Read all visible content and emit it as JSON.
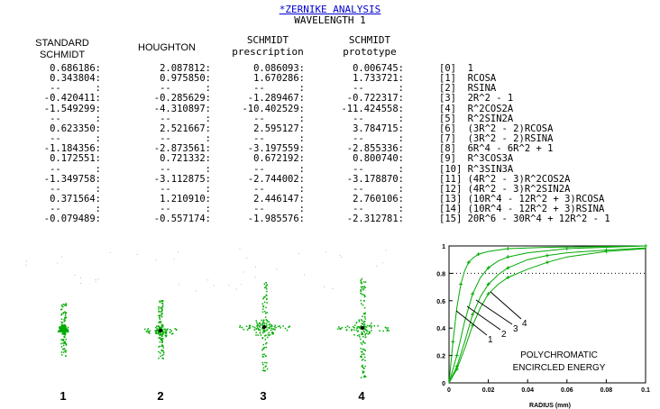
{
  "title": "*ZERNIKE ANALYSIS",
  "subtitle": "WAVELENGTH 1",
  "columns": [
    {
      "line1": "STANDARD",
      "line2": "SCHMIDT",
      "values": [
        "0.686186:",
        "0.343804:",
        "--      :",
        "-0.420411:",
        "-1.549299:",
        "--      :",
        "0.623350:",
        "--      :",
        "-1.184356:",
        "0.172551:",
        "--      :",
        "-1.349758:",
        "--      :",
        "0.371564:",
        "--      :",
        "-0.079489:"
      ]
    },
    {
      "line1": "",
      "line2": "HOUGHTON",
      "values": [
        "2.087812:",
        "0.975850:",
        "--      :",
        "-0.285629:",
        "-4.310897:",
        "--      :",
        "2.521667:",
        "--      :",
        "-2.873561:",
        "0.721332:",
        "--      :",
        "-3.112875:",
        "--      :",
        "1.210910:",
        "--      :",
        "-0.557174:"
      ]
    },
    {
      "line1": "SCHMIDT",
      "line2": "prescription",
      "values": [
        "0.086093:",
        "1.670286:",
        "--      :",
        "-1.289467:",
        "-10.402529:",
        "--      :",
        "2.595127:",
        "--      :",
        "-3.197559:",
        "0.672192:",
        "--      :",
        "-2.744002:",
        "--      :",
        "2.446147:",
        "--      :",
        "-1.985576:"
      ]
    },
    {
      "line1": "SCHMIDT",
      "line2": "prototype",
      "values": [
        "0.006745:",
        "1.733721:",
        "--      :",
        "-0.722317:",
        "-11.424558:",
        "--      :",
        "3.784715:",
        "--      :",
        "-2.855336:",
        "0.800740:",
        "--      :",
        "-3.178870:",
        "--      :",
        "2.760106:",
        "--      :",
        "-2.312781:"
      ]
    }
  ],
  "zernike_terms": [
    "[0]  1",
    "[1]  RCOSA",
    "[2]  RSINA",
    "[3]  2R^2 - 1",
    "[4]  R^2COS2A",
    "[5]  R^2SIN2A",
    "[6]  (3R^2 - 2)RCOSA",
    "[7]  (3R^2 - 2)RSINA",
    "[8]  6R^4 - 6R^2 + 1",
    "[9]  R^3COS3A",
    "[10] R^3SIN3A",
    "[11] (4R^2 - 3)R^2COS2A",
    "[12] (4R^2 - 3)R^2SIN2A",
    "[13] (10R^4 - 12R^2 + 3)RCOSA",
    "[14] (10R^4 - 12R^2 + 3)RSINA",
    "[15] 20R^6 - 30R^4 + 12R^2 - 1"
  ],
  "spot_labels": [
    "1",
    "2",
    "3",
    "4"
  ],
  "colors": {
    "title_link": "#0000cc",
    "spot": "#00aa00",
    "curve": "#00aa00",
    "chart_frame": "#000000"
  },
  "chart_data": {
    "type": "line",
    "title": "POLYCHROMATIC ENCIRCLED ENERGY",
    "title_line1": "POLYCHROMATIC",
    "title_line2": "ENCIRCLED ENERGY",
    "xlabel": "RADIUS (mm)",
    "ylabel": "",
    "xlim": [
      0,
      0.1
    ],
    "ylim": [
      0,
      1
    ],
    "x_ticks": [
      "0",
      "0.02",
      "0.04",
      "0.06",
      "0.08",
      "0.1"
    ],
    "y_ticks": [
      "0",
      "0.2",
      "0.4",
      "0.6",
      "0.8",
      "1"
    ],
    "reference_line": 0.8,
    "series": [
      {
        "name": "1",
        "x": [
          0,
          0.002,
          0.004,
          0.006,
          0.008,
          0.01,
          0.012,
          0.015,
          0.02,
          0.03,
          0.05,
          0.1
        ],
        "y": [
          0,
          0.3,
          0.55,
          0.72,
          0.82,
          0.88,
          0.91,
          0.94,
          0.96,
          0.98,
          0.99,
          1.0
        ]
      },
      {
        "name": "2",
        "x": [
          0,
          0.004,
          0.008,
          0.012,
          0.016,
          0.02,
          0.025,
          0.03,
          0.04,
          0.06,
          0.1
        ],
        "y": [
          0,
          0.2,
          0.45,
          0.65,
          0.77,
          0.84,
          0.89,
          0.92,
          0.95,
          0.98,
          1.0
        ]
      },
      {
        "name": "3",
        "x": [
          0,
          0.004,
          0.008,
          0.012,
          0.016,
          0.02,
          0.025,
          0.03,
          0.04,
          0.05,
          0.06,
          0.08,
          0.1
        ],
        "y": [
          0,
          0.12,
          0.3,
          0.5,
          0.63,
          0.72,
          0.79,
          0.84,
          0.9,
          0.93,
          0.95,
          0.97,
          0.985
        ]
      },
      {
        "name": "4",
        "x": [
          0,
          0.004,
          0.008,
          0.012,
          0.016,
          0.02,
          0.025,
          0.03,
          0.04,
          0.05,
          0.06,
          0.08,
          0.1
        ],
        "y": [
          0,
          0.1,
          0.25,
          0.42,
          0.55,
          0.65,
          0.72,
          0.77,
          0.83,
          0.88,
          0.92,
          0.96,
          0.98
        ]
      }
    ],
    "curve_labels": [
      "1",
      "2",
      "3",
      "4"
    ],
    "grid": false
  }
}
